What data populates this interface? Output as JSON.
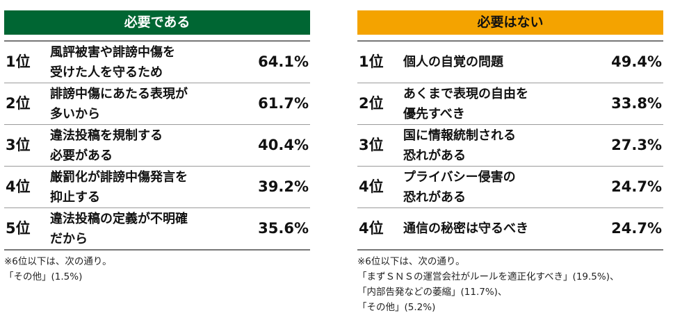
{
  "left_panel": {
    "header": "必要である",
    "rows": [
      {
        "rank": "1位",
        "label": "風評被害や誹謗中傷を\n受けた人を守るため",
        "pct": "64.1%"
      },
      {
        "rank": "2位",
        "label": "誹謗中傷にあたる表現が\n多いから",
        "pct": "61.7%"
      },
      {
        "rank": "3位",
        "label": "違法投稿を規制する\n必要がある",
        "pct": "40.4%"
      },
      {
        "rank": "4位",
        "label": "厳罰化が誹謗中傷発言を\n抑止する",
        "pct": "39.2%"
      },
      {
        "rank": "5位",
        "label": "違法投稿の定義が不明確\nだから",
        "pct": "35.6%"
      }
    ],
    "notes": [
      "※6位以下は、次の通り。",
      "「その他」(1.5%)"
    ]
  },
  "right_panel": {
    "header": "必要はない",
    "rows": [
      {
        "rank": "1位",
        "label": "個人の自覚の問題",
        "pct": "49.4%"
      },
      {
        "rank": "2位",
        "label": "あくまで表現の自由を\n優先すべき",
        "pct": "33.8%"
      },
      {
        "rank": "3位",
        "label": "国に情報統制される\n恐れがある",
        "pct": "27.3%"
      },
      {
        "rank": "4位",
        "label": "プライバシー侵害の\n恐れがある",
        "pct": "24.7%"
      },
      {
        "rank": "4位",
        "label": "通信の秘密は守るべき",
        "pct": "24.7%"
      }
    ],
    "notes": [
      "※6位以下は、次の通り。",
      "「まずＳＮＳの運営会社がルールを適正化すべき」(19.5%)、",
      "「内部告発などの萎縮」(11.7%)、",
      "「その他」(5.2%)"
    ]
  },
  "colors": {
    "left_header_bg": "#006633",
    "right_header_bg": "#f4a300"
  }
}
